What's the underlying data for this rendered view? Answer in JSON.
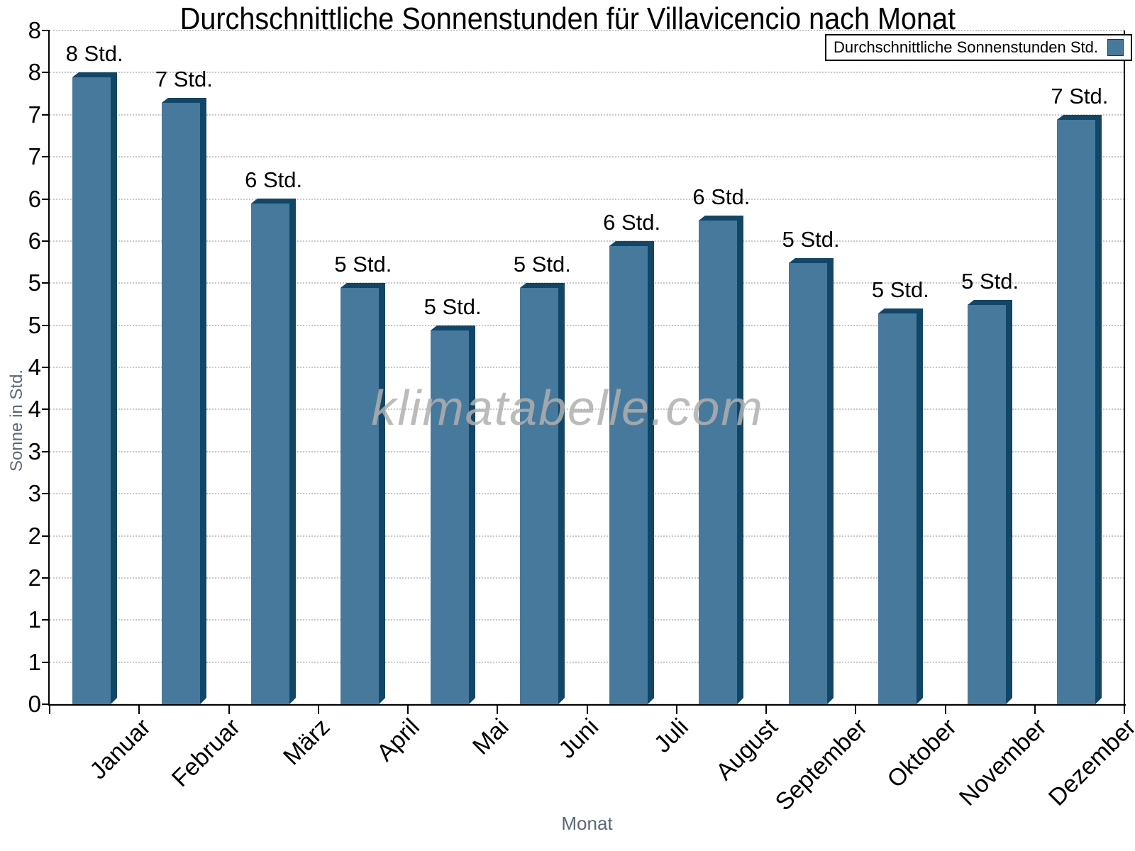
{
  "chart_data": {
    "type": "bar",
    "title": "Durchschnittliche Sonnenstunden für Villavicencio nach Monat",
    "xlabel": "Monat",
    "ylabel": "Sonne in Std.",
    "watermark": "klimatabelle.com",
    "legend": {
      "label": "Durchschnittliche Sonnenstunden Std.",
      "position": "top-right"
    },
    "categories": [
      "Januar",
      "Februar",
      "März",
      "April",
      "Mai",
      "Juni",
      "Juli",
      "August",
      "September",
      "Oktober",
      "November",
      "Dezember"
    ],
    "series": [
      {
        "name": "Durchschnittliche Sonnenstunden Std.",
        "values": [
          7.5,
          7.2,
          6.0,
          5.0,
          4.5,
          5.0,
          5.5,
          5.8,
          5.3,
          4.7,
          4.8,
          7.0
        ],
        "data_labels": [
          "8 Std.",
          "7 Std.",
          "6 Std.",
          "5 Std.",
          "5 Std.",
          "5 Std.",
          "6 Std.",
          "6 Std.",
          "5 Std.",
          "5 Std.",
          "5 Std.",
          "7 Std."
        ]
      }
    ],
    "ylim": [
      0,
      8
    ],
    "y_tick_step": 0.5,
    "y_tick_labels_top_to_bottom": [
      "8",
      "8",
      "7",
      "7",
      "6",
      "6",
      "5",
      "5",
      "4",
      "4",
      "3",
      "3",
      "2",
      "2",
      "1",
      "1",
      "0"
    ],
    "grid": "horizontal-dotted",
    "legend_position": "top-right",
    "colors": {
      "bar_face": "#47799c",
      "bar_edge_dark": "#124666",
      "grid_line": "#c7c7c7",
      "axis_line": "#000000",
      "axis_title_text": "#5c6875",
      "watermark_text": "#b0b0b0",
      "background": "#ffffff"
    }
  }
}
